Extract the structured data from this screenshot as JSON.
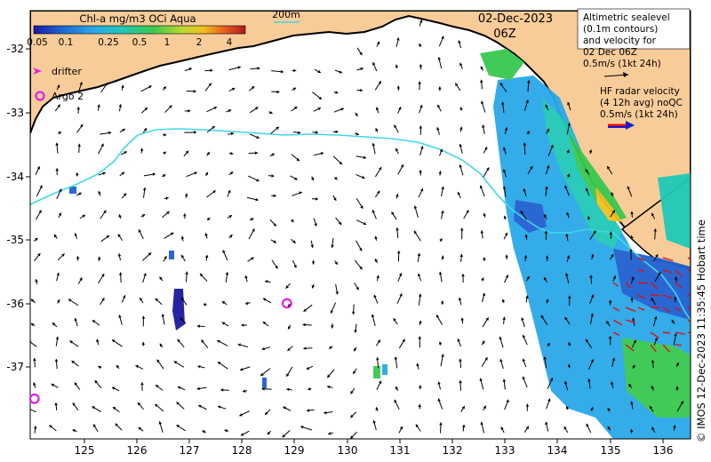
{
  "colorbar": {
    "title": "Chl-a mg/m3 OCi Aqua",
    "ticks": [
      "0.05",
      "0.1",
      "0.25",
      "0.5",
      "1",
      "2",
      "4"
    ],
    "colors": [
      "#1a1aa0",
      "#1f5fd0",
      "#2aa8e8",
      "#20c8b8",
      "#38c850",
      "#b8d830",
      "#f0c020",
      "#e86020",
      "#b01818"
    ]
  },
  "isobath_label": "200m",
  "date_line": "02-Dec-2023",
  "time_line": "06Z",
  "altimetry_box": {
    "lines": [
      "Altimetric sealevel",
      "(0.1m contours)",
      "and velocity for",
      "02 Dec 06Z",
      "0.5m/s (1kt 24h)"
    ]
  },
  "hf_radar": {
    "lines": [
      "HF radar velocity",
      "(4 12h avg) noQC",
      "0.5m/s (1kt 24h)"
    ]
  },
  "legend": {
    "drifter_label": "drifter",
    "argo_label": "Argo 2"
  },
  "credit": "© IMOS 12-Dec-2023 11:35:45 Hobart time",
  "axes": {
    "lon_ticks": [
      "125",
      "126",
      "127",
      "128",
      "129",
      "130",
      "131",
      "132",
      "133",
      "134",
      "135",
      "136"
    ],
    "lat_ticks": [
      "-32",
      "-33",
      "-34",
      "-35",
      "-36",
      "-37"
    ]
  },
  "argo_floats": [
    {
      "lon": 128.85,
      "lat": -36.0
    },
    {
      "lon": 124.05,
      "lat": -37.5
    }
  ],
  "colors": {
    "land": "#f8cc99",
    "coast": "#000000",
    "isobath": "#40d8e8",
    "argo": "#e020e0",
    "hf_arrow": "#dd1111"
  }
}
